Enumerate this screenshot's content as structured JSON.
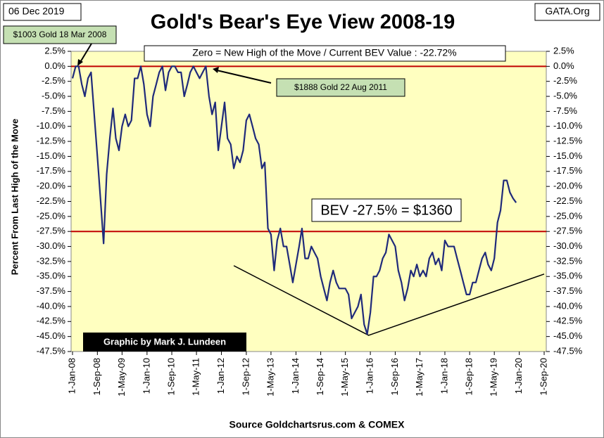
{
  "chart_data": {
    "type": "line",
    "title": "Gold's Bear's Eye View 2008-19",
    "date_label": "06 Dec 2019",
    "source_tag": "GATA.Org",
    "y_label": "Percent  From Last High of the Move",
    "x_label": "Source Goldchartsrus.com & COMEX",
    "annotations": {
      "first_high": "$1003 Gold 18 Mar 2008",
      "zero_note": "Zero = New High of the Move / Current  BEV Value : -22.72%",
      "second_high": "$1888 Gold 22 Aug 2011",
      "bev_level": "BEV -27.5% = $1360",
      "credit": "Graphic by Mark J. Lundeen"
    },
    "hlines": [
      0,
      -27.5
    ],
    "hline_color": "#c00000",
    "trendline": {
      "x": [
        "2012-05-01",
        "2015-12-15",
        "2020-09-01"
      ],
      "values": [
        -33.2,
        -44.8,
        -34.6
      ],
      "color": "#000000"
    },
    "xlim": [
      "2008-01-01",
      "2020-09-01"
    ],
    "xticks": [
      {
        "value": "2008-01-01",
        "label": "1-Jan-08"
      },
      {
        "value": "2008-09-01",
        "label": "1-Sep-08"
      },
      {
        "value": "2009-05-01",
        "label": "1-May-09"
      },
      {
        "value": "2010-01-01",
        "label": "1-Jan-10"
      },
      {
        "value": "2010-09-01",
        "label": "1-Sep-10"
      },
      {
        "value": "2011-05-01",
        "label": "1-May-11"
      },
      {
        "value": "2012-01-01",
        "label": "1-Jan-12"
      },
      {
        "value": "2012-09-01",
        "label": "1-Sep-12"
      },
      {
        "value": "2013-05-01",
        "label": "1-May-13"
      },
      {
        "value": "2014-01-01",
        "label": "1-Jan-14"
      },
      {
        "value": "2014-09-01",
        "label": "1-Sep-14"
      },
      {
        "value": "2015-05-01",
        "label": "1-May-15"
      },
      {
        "value": "2016-01-01",
        "label": "1-Jan-16"
      },
      {
        "value": "2016-09-01",
        "label": "1-Sep-16"
      },
      {
        "value": "2017-05-01",
        "label": "1-May-17"
      },
      {
        "value": "2018-01-01",
        "label": "1-Jan-18"
      },
      {
        "value": "2018-09-01",
        "label": "1-Sep-18"
      },
      {
        "value": "2019-05-01",
        "label": "1-May-19"
      },
      {
        "value": "2020-01-01",
        "label": "1-Jan-20"
      },
      {
        "value": "2020-09-01",
        "label": "1-Sep-20"
      }
    ],
    "ylim": [
      -47.5,
      2.5
    ],
    "yticks": [
      {
        "value": 2.5,
        "label": "2.5%"
      },
      {
        "value": 0,
        "label": "0.0%"
      },
      {
        "value": -2.5,
        "label": "-2.5%"
      },
      {
        "value": -5,
        "label": "-5.0%"
      },
      {
        "value": -7.5,
        "label": "-7.5%"
      },
      {
        "value": -10,
        "label": "-10.0%"
      },
      {
        "value": -12.5,
        "label": "-12.5%"
      },
      {
        "value": -15,
        "label": "-15.0%"
      },
      {
        "value": -17.5,
        "label": "-17.5%"
      },
      {
        "value": -20,
        "label": "-20.0%"
      },
      {
        "value": -22.5,
        "label": "-22.5%"
      },
      {
        "value": -25,
        "label": "-25.0%"
      },
      {
        "value": -27.5,
        "label": "-27.5%"
      },
      {
        "value": -30,
        "label": "-30.0%"
      },
      {
        "value": -32.5,
        "label": "-32.5%"
      },
      {
        "value": -35,
        "label": "-35.0%"
      },
      {
        "value": -37.5,
        "label": "-37.5%"
      },
      {
        "value": -40,
        "label": "-40.0%"
      },
      {
        "value": -42.5,
        "label": "-42.5%"
      },
      {
        "value": -45,
        "label": "-45.0%"
      },
      {
        "value": -47.5,
        "label": "-47.5%"
      }
    ],
    "x": [
      "2008-01-01",
      "2008-02-01",
      "2008-03-01",
      "2008-04-01",
      "2008-05-01",
      "2008-06-01",
      "2008-07-01",
      "2008-08-01",
      "2008-09-01",
      "2008-10-01",
      "2008-11-01",
      "2008-12-01",
      "2009-01-01",
      "2009-02-01",
      "2009-03-01",
      "2009-04-01",
      "2009-05-01",
      "2009-06-01",
      "2009-07-01",
      "2009-08-01",
      "2009-09-01",
      "2009-10-01",
      "2009-11-01",
      "2009-12-01",
      "2010-01-01",
      "2010-02-01",
      "2010-03-01",
      "2010-04-01",
      "2010-05-01",
      "2010-06-01",
      "2010-07-01",
      "2010-08-01",
      "2010-09-01",
      "2010-10-01",
      "2010-11-01",
      "2010-12-01",
      "2011-01-01",
      "2011-02-01",
      "2011-03-01",
      "2011-04-01",
      "2011-05-01",
      "2011-06-01",
      "2011-07-01",
      "2011-08-01",
      "2011-09-01",
      "2011-10-01",
      "2011-11-01",
      "2011-12-01",
      "2012-01-01",
      "2012-02-01",
      "2012-03-01",
      "2012-04-01",
      "2012-05-01",
      "2012-06-01",
      "2012-07-01",
      "2012-08-01",
      "2012-09-01",
      "2012-10-01",
      "2012-11-01",
      "2012-12-01",
      "2013-01-01",
      "2013-02-01",
      "2013-03-01",
      "2013-04-01",
      "2013-05-01",
      "2013-06-01",
      "2013-07-01",
      "2013-08-01",
      "2013-09-01",
      "2013-10-01",
      "2013-11-01",
      "2013-12-01",
      "2014-01-01",
      "2014-02-01",
      "2014-03-01",
      "2014-04-01",
      "2014-05-01",
      "2014-06-01",
      "2014-07-01",
      "2014-08-01",
      "2014-09-01",
      "2014-10-01",
      "2014-11-01",
      "2014-12-01",
      "2015-01-01",
      "2015-02-01",
      "2015-03-01",
      "2015-04-01",
      "2015-05-01",
      "2015-06-01",
      "2015-07-01",
      "2015-08-01",
      "2015-09-01",
      "2015-10-01",
      "2015-11-01",
      "2015-12-01",
      "2016-01-01",
      "2016-02-01",
      "2016-03-01",
      "2016-04-01",
      "2016-05-01",
      "2016-06-01",
      "2016-07-01",
      "2016-08-01",
      "2016-09-01",
      "2016-10-01",
      "2016-11-01",
      "2016-12-01",
      "2017-01-01",
      "2017-02-01",
      "2017-03-01",
      "2017-04-01",
      "2017-05-01",
      "2017-06-01",
      "2017-07-01",
      "2017-08-01",
      "2017-09-01",
      "2017-10-01",
      "2017-11-01",
      "2017-12-01",
      "2018-01-01",
      "2018-02-01",
      "2018-03-01",
      "2018-04-01",
      "2018-05-01",
      "2018-06-01",
      "2018-07-01",
      "2018-08-01",
      "2018-09-01",
      "2018-10-01",
      "2018-11-01",
      "2018-12-01",
      "2019-01-01",
      "2019-02-01",
      "2019-03-01",
      "2019-04-01",
      "2019-05-01",
      "2019-06-01",
      "2019-07-01",
      "2019-08-01",
      "2019-09-01",
      "2019-10-01",
      "2019-11-01",
      "2019-12-01"
    ],
    "series": [
      {
        "name": "BEV",
        "color": "#1f2a7a",
        "values": [
          -2,
          0,
          0,
          -3,
          -5,
          -2,
          -1,
          -8,
          -15,
          -22,
          -29.5,
          -18,
          -12,
          -7,
          -12,
          -14,
          -10,
          -8,
          -10,
          -9,
          -2,
          -2,
          0,
          -3,
          -8,
          -10,
          -5,
          -3,
          -1,
          0,
          -4,
          -1,
          0,
          0,
          -1,
          -1,
          -5,
          -3,
          -1,
          0,
          -1,
          -2,
          -1,
          0,
          -5,
          -8,
          -6,
          -14,
          -10,
          -6,
          -12,
          -13,
          -17,
          -15,
          -16,
          -14,
          -9,
          -8,
          -10,
          -12,
          -13,
          -17,
          -16,
          -27,
          -28,
          -34,
          -29,
          -27,
          -30,
          -30,
          -33,
          -36,
          -33,
          -30,
          -27,
          -32,
          -32,
          -30,
          -31,
          -32,
          -35,
          -37,
          -39,
          -36,
          -34,
          -36,
          -37,
          -37,
          -37,
          -38,
          -42,
          -41,
          -40,
          -38,
          -43,
          -44.6,
          -41,
          -35,
          -35,
          -34,
          -32,
          -31,
          -28,
          -29,
          -30,
          -34,
          -36,
          -39,
          -37,
          -34,
          -35,
          -33,
          -35,
          -34,
          -35,
          -32,
          -31,
          -33,
          -32,
          -34,
          -29,
          -30,
          -30,
          -30,
          -32,
          -34,
          -36,
          -38,
          -38,
          -36,
          -36,
          -34,
          -32,
          -31,
          -33,
          -34,
          -32,
          -26,
          -24,
          -19,
          -19,
          -21,
          -22,
          -22.7
        ]
      }
    ],
    "plot_background": "#ffffc0"
  }
}
